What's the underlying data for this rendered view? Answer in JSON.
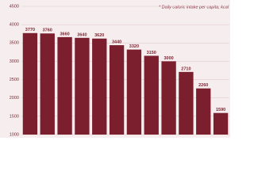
{
  "chart_data": {
    "type": "bar",
    "title": "* Daily caloric intake per capita, kcal",
    "values": [
      3770,
      3760,
      3660,
      3640,
      3620,
      3440,
      3320,
      3150,
      3000,
      2710,
      2260,
      1590
    ],
    "color": "#7b1f2e",
    "ylim": [
      1000,
      4500
    ],
    "yticks": [
      1000,
      1500,
      2000,
      2500,
      3000,
      3500,
      4000,
      4500
    ],
    "grid": true
  }
}
